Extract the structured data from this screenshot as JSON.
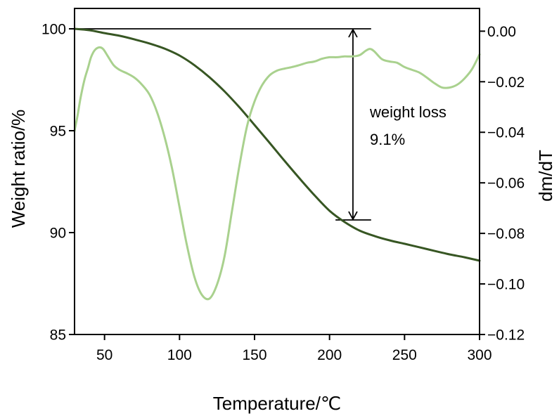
{
  "chart_data": {
    "type": "line",
    "xlabel": "Temperature/℃",
    "ylabel": "Weight ratio/%",
    "y2label": "dm/dT",
    "xlim": [
      30,
      300
    ],
    "ylim": [
      85,
      101
    ],
    "y2lim": [
      -0.12,
      0.009
    ],
    "xticks": [
      50,
      100,
      150,
      200,
      250,
      300
    ],
    "xtick_labels": [
      "50",
      "100",
      "150",
      "200",
      "250",
      "300"
    ],
    "yticks": [
      85,
      90,
      95,
      100
    ],
    "ytick_labels": [
      "85",
      "90",
      "95",
      "100"
    ],
    "y2ticks": [
      0,
      -0.02,
      -0.04,
      -0.06,
      -0.08,
      -0.1,
      -0.12
    ],
    "y2tick_labels": [
      "0.00",
      "−0.02",
      "−0.04",
      "−0.06",
      "−0.08",
      "−0.10",
      "−0.12"
    ],
    "grid": false,
    "legend": "none",
    "annotation": {
      "line1": "weight loss",
      "line2": "9.1%"
    },
    "series": [
      {
        "y_axis": "left",
        "color": "#375623",
        "x": [
          30,
          40,
          50,
          60,
          70,
          80,
          90,
          100,
          110,
          120,
          130,
          140,
          150,
          160,
          170,
          180,
          190,
          200,
          210,
          220,
          230,
          240,
          250,
          260,
          270,
          280,
          290,
          300
        ],
        "y": [
          100.0,
          99.93,
          99.79,
          99.66,
          99.48,
          99.28,
          99.03,
          98.69,
          98.21,
          97.62,
          96.93,
          96.14,
          95.28,
          94.41,
          93.52,
          92.66,
          91.83,
          91.07,
          90.52,
          90.1,
          89.83,
          89.62,
          89.45,
          89.28,
          89.1,
          88.93,
          88.79,
          88.62
        ]
      },
      {
        "y_axis": "right",
        "color": "#a9d18e",
        "x": [
          30,
          32,
          34,
          36.5,
          39,
          41,
          43.5,
          46.5,
          49,
          52,
          56,
          60,
          65,
          70,
          75,
          80,
          85,
          90,
          95,
          100,
          105,
          110,
          115,
          120,
          125,
          130,
          135,
          140,
          145,
          150,
          155,
          160,
          165,
          170,
          175,
          180,
          185,
          190,
          195,
          200,
          205,
          210,
          215,
          220,
          224,
          227,
          230,
          235,
          240,
          245,
          250,
          255,
          260,
          265,
          270,
          275,
          280,
          285,
          290,
          295,
          300
        ],
        "y": [
          -0.0395,
          -0.0334,
          -0.0265,
          -0.0195,
          -0.0145,
          -0.0103,
          -0.0075,
          -0.0064,
          -0.007,
          -0.0097,
          -0.0134,
          -0.0153,
          -0.0167,
          -0.0184,
          -0.0212,
          -0.0251,
          -0.032,
          -0.0418,
          -0.0543,
          -0.0696,
          -0.0849,
          -0.0974,
          -0.1044,
          -0.1058,
          -0.1002,
          -0.0891,
          -0.071,
          -0.0529,
          -0.0376,
          -0.0278,
          -0.0214,
          -0.0175,
          -0.0156,
          -0.0148,
          -0.0142,
          -0.0134,
          -0.0125,
          -0.012,
          -0.0109,
          -0.0103,
          -0.0103,
          -0.01,
          -0.01,
          -0.0095,
          -0.0078,
          -0.007,
          -0.0081,
          -0.0111,
          -0.012,
          -0.0125,
          -0.0142,
          -0.0153,
          -0.0164,
          -0.0184,
          -0.0206,
          -0.0223,
          -0.0223,
          -0.0212,
          -0.0187,
          -0.015,
          -0.0092
        ]
      }
    ]
  }
}
